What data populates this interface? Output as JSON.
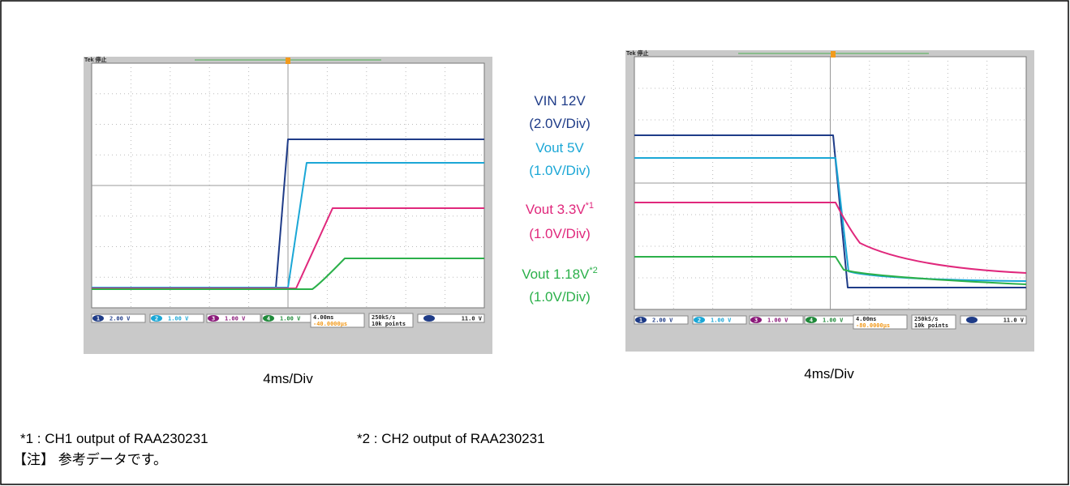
{
  "figures": [
    {
      "scope": {
        "brand": "Tek 停止",
        "channels": [
          {
            "id": "1",
            "scale": "2.00 V"
          },
          {
            "id": "2",
            "scale": "1.00 V"
          },
          {
            "id": "3",
            "scale": "1.00 V"
          },
          {
            "id": "4",
            "scale": "1.00 V"
          }
        ],
        "timebase": "4.00ms",
        "delay": "-40.0000μs",
        "sample_rate": "250kS/s",
        "record_length": "10k points",
        "trigger_level": "11.0 V"
      },
      "caption": "4ms/Div"
    },
    {
      "scope": {
        "brand": "Tek 停止",
        "channels": [
          {
            "id": "1",
            "scale": "2.00 V"
          },
          {
            "id": "2",
            "scale": "1.00 V"
          },
          {
            "id": "3",
            "scale": "1.00 V"
          },
          {
            "id": "4",
            "scale": "1.00 V"
          }
        ],
        "timebase": "4.00ms",
        "delay": "-80.0000μs",
        "sample_rate": "250kS/s",
        "record_length": "10k points",
        "trigger_level": "11.0 V"
      },
      "caption": "4ms/Div"
    }
  ],
  "legend": [
    {
      "name": "VIN 12V",
      "scale": "(2.0V/Div)",
      "color": "#1f3c88"
    },
    {
      "name": "Vout 5V",
      "scale": "(1.0V/Div)",
      "color": "#1ba7d6"
    },
    {
      "name": "Vout 3.3V",
      "note": "*1",
      "scale": "(1.0V/Div)",
      "color": "#e0287c"
    },
    {
      "name": "Vout 1.18V",
      "note": "*2",
      "scale": "(1.0V/Div)",
      "color": "#2bb04a"
    }
  ],
  "footnotes": [
    "*1 : CH1 output of RAA230231",
    "*2 : CH2 output of RAA230231"
  ],
  "note": "【注】 参考データです。"
}
